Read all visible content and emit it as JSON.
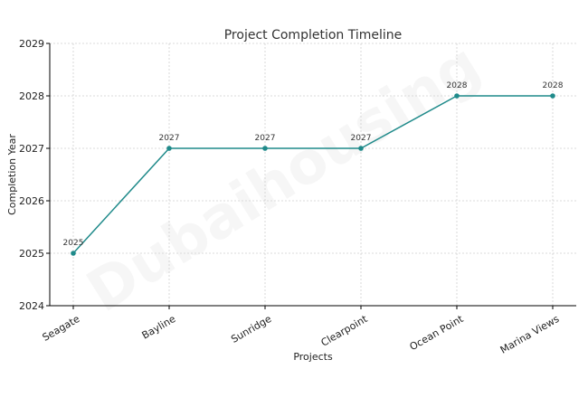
{
  "chart_data": {
    "type": "line",
    "title": "Project Completion Timeline",
    "xlabel": "Projects",
    "ylabel": "Completion Year",
    "categories": [
      "Seagate",
      "Bayline",
      "Sunridge",
      "Clearpoint",
      "Ocean Point",
      "Marina Views"
    ],
    "series": [
      {
        "values": [
          2025,
          2027,
          2027,
          2027,
          2028,
          2028
        ]
      }
    ],
    "data_labels": [
      "2025",
      "2027",
      "2027",
      "2027",
      "2028",
      "2028"
    ],
    "ylim": [
      2024,
      2029
    ],
    "yticks": [
      2024,
      2025,
      2026,
      2027,
      2028,
      2029
    ],
    "grid": true,
    "line_color": "#1f8a8a",
    "watermark": "Dubaihousing"
  }
}
